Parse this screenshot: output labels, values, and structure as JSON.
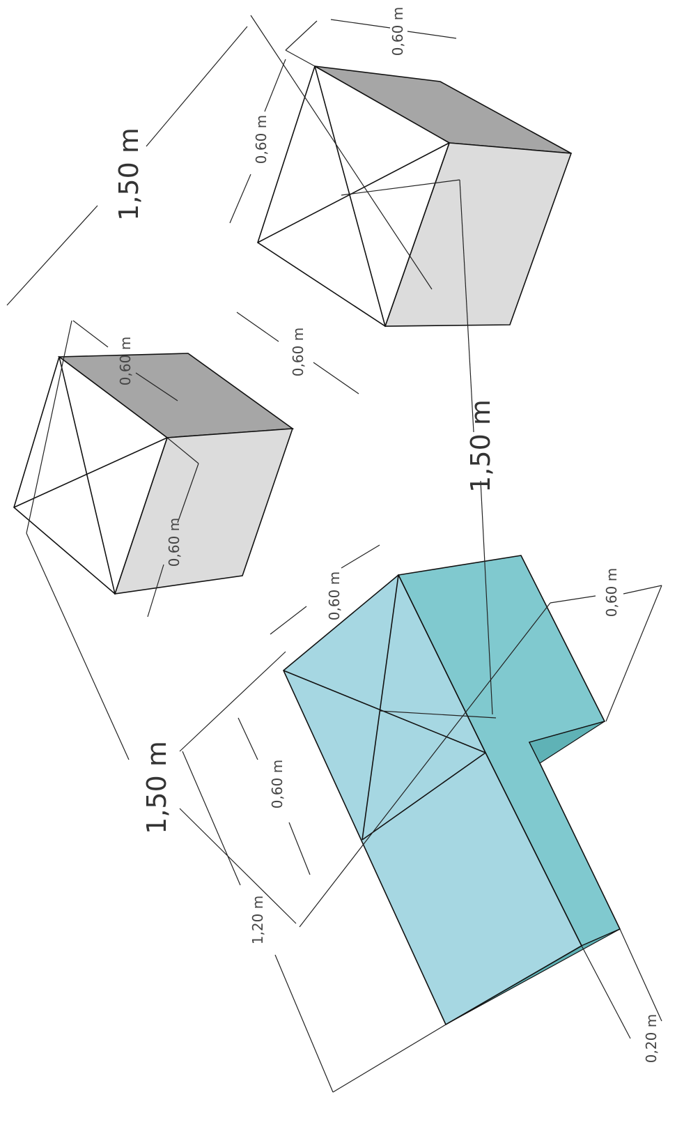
{
  "dimensions": [
    {
      "label": "1,50 m"
    },
    {
      "label": "0,60 m"
    },
    {
      "label": "0,60 m"
    },
    {
      "label": "0,60 m"
    },
    {
      "label": "0,60 m"
    },
    {
      "label": "0,60 m"
    },
    {
      "label": "1,50 m"
    },
    {
      "label": "0,60 m"
    },
    {
      "label": "0,60 m"
    },
    {
      "label": "1,50 m"
    },
    {
      "label": "0,60 m"
    },
    {
      "label": "1,20 m"
    },
    {
      "label": "0,20 m"
    }
  ]
}
